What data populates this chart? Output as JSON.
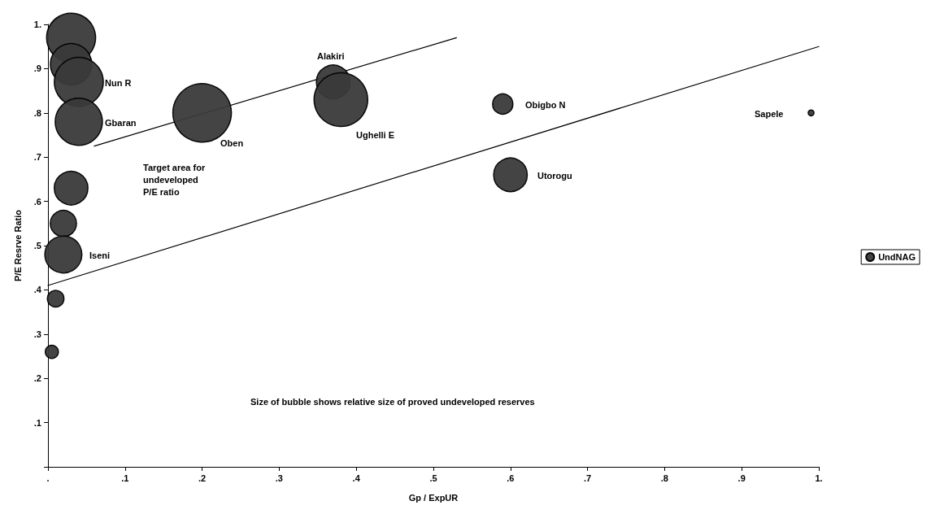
{
  "chart_data": {
    "type": "bubble",
    "xlabel": "Gp / ExpUR",
    "ylabel": "P/E Resrve Ratio",
    "xlim": [
      0,
      1
    ],
    "ylim": [
      0,
      1
    ],
    "xticks": [
      {
        "value": 0,
        "label": "."
      },
      {
        "value": 0.1,
        "label": ".1"
      },
      {
        "value": 0.2,
        "label": ".2"
      },
      {
        "value": 0.3,
        "label": ".3"
      },
      {
        "value": 0.4,
        "label": ".4"
      },
      {
        "value": 0.5,
        "label": ".5"
      },
      {
        "value": 0.6,
        "label": ".6"
      },
      {
        "value": 0.7,
        "label": ".7"
      },
      {
        "value": 0.8,
        "label": ".8"
      },
      {
        "value": 0.9,
        "label": ".9"
      },
      {
        "value": 1,
        "label": "1."
      }
    ],
    "yticks": [
      {
        "value": 0,
        "label": null
      },
      {
        "value": 0.1,
        "label": ".1"
      },
      {
        "value": 0.2,
        "label": ".2"
      },
      {
        "value": 0.3,
        "label": ".3"
      },
      {
        "value": 0.4,
        "label": ".4"
      },
      {
        "value": 0.5,
        "label": ".5"
      },
      {
        "value": 0.6,
        "label": ".6"
      },
      {
        "value": 0.7,
        "label": ".7"
      },
      {
        "value": 0.8,
        "label": ".8"
      },
      {
        "value": 0.9,
        "label": ".9"
      },
      {
        "value": 1,
        "label": "1."
      }
    ],
    "grid": false,
    "legend": "right",
    "series": [
      {
        "name": "UndNAG",
        "color": "#3a3a3a",
        "x": [
          0.03,
          0.03,
          0.04,
          0.04,
          0.03,
          0.02,
          0.02,
          0.01,
          0.005,
          0.2,
          0.37,
          0.38,
          0.59,
          0.6,
          0.99
        ],
        "values": [
          0.97,
          0.91,
          0.87,
          0.78,
          0.63,
          0.55,
          0.48,
          0.38,
          0.26,
          0.8,
          0.87,
          0.83,
          0.82,
          0.66,
          0.8
        ],
        "sizes": [
          0.7,
          0.5,
          0.7,
          0.65,
          0.33,
          0.2,
          0.4,
          0.08,
          0.05,
          1,
          0.33,
          0.84,
          0.12,
          0.33,
          0.01
        ]
      },
      {
        "type": "line",
        "color": "#000000",
        "x": [
          0.06,
          0.53
        ],
        "values": [
          0.725,
          0.97
        ]
      },
      {
        "type": "line",
        "color": "#000000",
        "x": [
          0,
          1
        ],
        "values": [
          0.41,
          0.95
        ]
      }
    ],
    "annotations": [
      "Nun R",
      "Gbaran",
      "Iseni",
      "Oben",
      "Alakiri",
      "Ughelli E",
      "Obigbo N",
      "Utorogu",
      "Sapele",
      "Target area for\nundeveloped\nP/E ratio",
      "Size of bubble shows relative size of proved undeveloped reserves"
    ]
  }
}
